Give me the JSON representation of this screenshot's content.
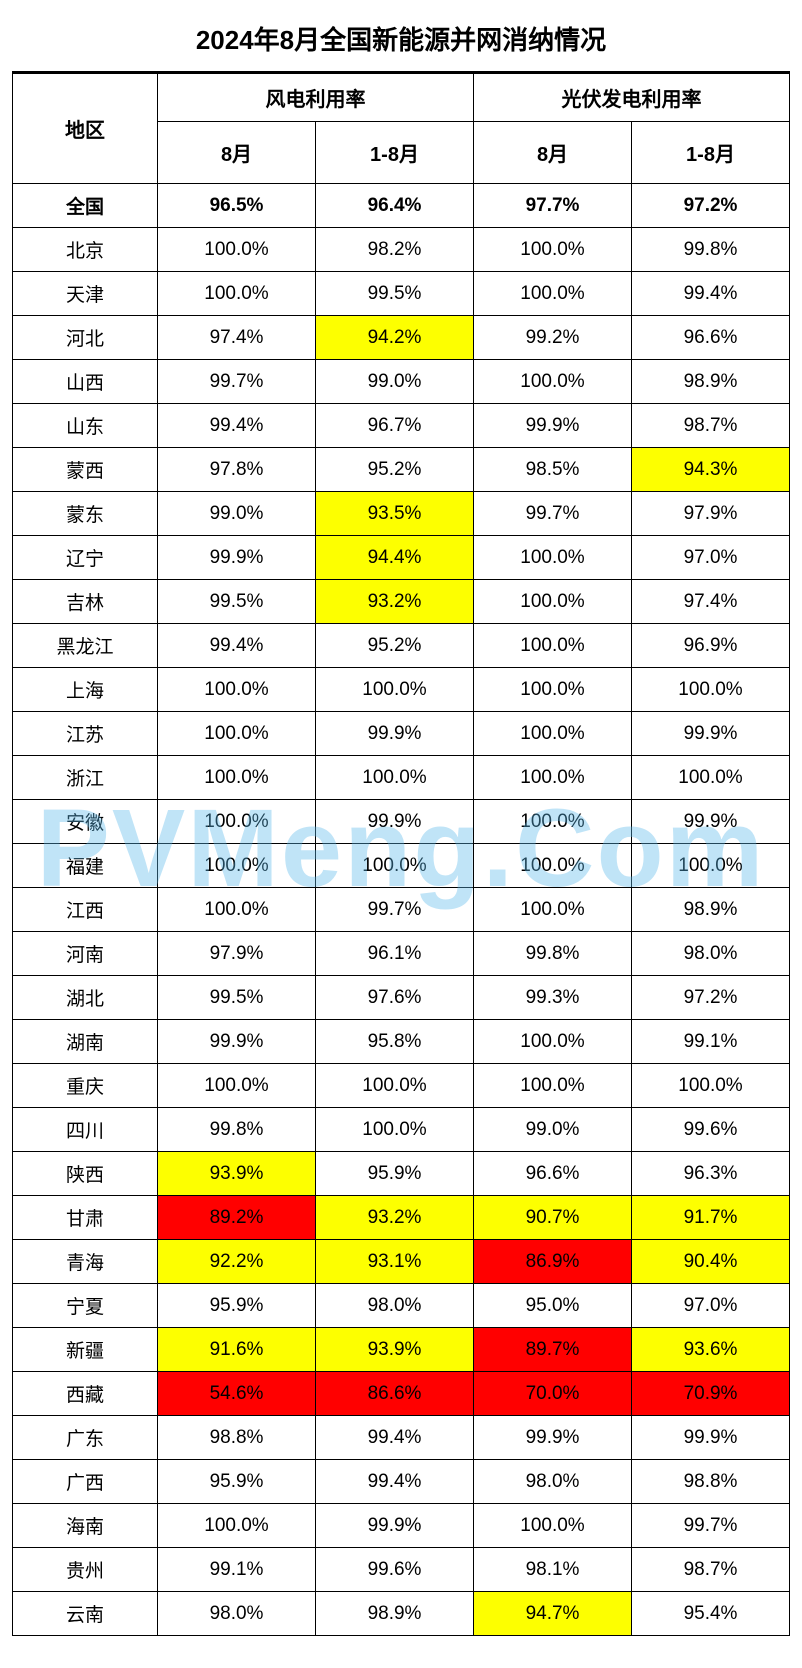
{
  "title": "2024年8月全国新能源并网消纳情况",
  "watermark": "PVMeng.Com",
  "colors": {
    "highlight_yellow": "#fdff00",
    "highlight_red": "#ff0000",
    "border": "#000000",
    "background": "#ffffff",
    "watermark": "rgba(90,185,235,0.38)"
  },
  "header": {
    "region": "地区",
    "group_wind": "风电利用率",
    "group_solar": "光伏发电利用率",
    "sub_aug": "8月",
    "sub_jan_aug": "1-8月"
  },
  "rows": [
    {
      "region": "全国",
      "bold": true,
      "wind_aug": "96.5%",
      "wind_ytd": "96.4%",
      "solar_aug": "97.7%",
      "solar_ytd": "97.2%",
      "hl": {}
    },
    {
      "region": "北京",
      "wind_aug": "100.0%",
      "wind_ytd": "98.2%",
      "solar_aug": "100.0%",
      "solar_ytd": "99.8%",
      "hl": {}
    },
    {
      "region": "天津",
      "wind_aug": "100.0%",
      "wind_ytd": "99.5%",
      "solar_aug": "100.0%",
      "solar_ytd": "99.4%",
      "hl": {}
    },
    {
      "region": "河北",
      "wind_aug": "97.4%",
      "wind_ytd": "94.2%",
      "solar_aug": "99.2%",
      "solar_ytd": "96.6%",
      "hl": {
        "wind_ytd": "yellow"
      }
    },
    {
      "region": "山西",
      "wind_aug": "99.7%",
      "wind_ytd": "99.0%",
      "solar_aug": "100.0%",
      "solar_ytd": "98.9%",
      "hl": {}
    },
    {
      "region": "山东",
      "wind_aug": "99.4%",
      "wind_ytd": "96.7%",
      "solar_aug": "99.9%",
      "solar_ytd": "98.7%",
      "hl": {}
    },
    {
      "region": "蒙西",
      "wind_aug": "97.8%",
      "wind_ytd": "95.2%",
      "solar_aug": "98.5%",
      "solar_ytd": "94.3%",
      "hl": {
        "solar_ytd": "yellow"
      }
    },
    {
      "region": "蒙东",
      "wind_aug": "99.0%",
      "wind_ytd": "93.5%",
      "solar_aug": "99.7%",
      "solar_ytd": "97.9%",
      "hl": {
        "wind_ytd": "yellow"
      }
    },
    {
      "region": "辽宁",
      "wind_aug": "99.9%",
      "wind_ytd": "94.4%",
      "solar_aug": "100.0%",
      "solar_ytd": "97.0%",
      "hl": {
        "wind_ytd": "yellow"
      }
    },
    {
      "region": "吉林",
      "wind_aug": "99.5%",
      "wind_ytd": "93.2%",
      "solar_aug": "100.0%",
      "solar_ytd": "97.4%",
      "hl": {
        "wind_ytd": "yellow"
      }
    },
    {
      "region": "黑龙江",
      "wind_aug": "99.4%",
      "wind_ytd": "95.2%",
      "solar_aug": "100.0%",
      "solar_ytd": "96.9%",
      "hl": {}
    },
    {
      "region": "上海",
      "wind_aug": "100.0%",
      "wind_ytd": "100.0%",
      "solar_aug": "100.0%",
      "solar_ytd": "100.0%",
      "hl": {}
    },
    {
      "region": "江苏",
      "wind_aug": "100.0%",
      "wind_ytd": "99.9%",
      "solar_aug": "100.0%",
      "solar_ytd": "99.9%",
      "hl": {}
    },
    {
      "region": "浙江",
      "wind_aug": "100.0%",
      "wind_ytd": "100.0%",
      "solar_aug": "100.0%",
      "solar_ytd": "100.0%",
      "hl": {}
    },
    {
      "region": "安徽",
      "wind_aug": "100.0%",
      "wind_ytd": "99.9%",
      "solar_aug": "100.0%",
      "solar_ytd": "99.9%",
      "hl": {}
    },
    {
      "region": "福建",
      "wind_aug": "100.0%",
      "wind_ytd": "100.0%",
      "solar_aug": "100.0%",
      "solar_ytd": "100.0%",
      "hl": {}
    },
    {
      "region": "江西",
      "wind_aug": "100.0%",
      "wind_ytd": "99.7%",
      "solar_aug": "100.0%",
      "solar_ytd": "98.9%",
      "hl": {}
    },
    {
      "region": "河南",
      "wind_aug": "97.9%",
      "wind_ytd": "96.1%",
      "solar_aug": "99.8%",
      "solar_ytd": "98.0%",
      "hl": {}
    },
    {
      "region": "湖北",
      "wind_aug": "99.5%",
      "wind_ytd": "97.6%",
      "solar_aug": "99.3%",
      "solar_ytd": "97.2%",
      "hl": {}
    },
    {
      "region": "湖南",
      "wind_aug": "99.9%",
      "wind_ytd": "95.8%",
      "solar_aug": "100.0%",
      "solar_ytd": "99.1%",
      "hl": {}
    },
    {
      "region": "重庆",
      "wind_aug": "100.0%",
      "wind_ytd": "100.0%",
      "solar_aug": "100.0%",
      "solar_ytd": "100.0%",
      "hl": {}
    },
    {
      "region": "四川",
      "wind_aug": "99.8%",
      "wind_ytd": "100.0%",
      "solar_aug": "99.0%",
      "solar_ytd": "99.6%",
      "hl": {}
    },
    {
      "region": "陕西",
      "wind_aug": "93.9%",
      "wind_ytd": "95.9%",
      "solar_aug": "96.6%",
      "solar_ytd": "96.3%",
      "hl": {
        "wind_aug": "yellow"
      }
    },
    {
      "region": "甘肃",
      "wind_aug": "89.2%",
      "wind_ytd": "93.2%",
      "solar_aug": "90.7%",
      "solar_ytd": "91.7%",
      "hl": {
        "wind_aug": "red",
        "wind_ytd": "yellow",
        "solar_aug": "yellow",
        "solar_ytd": "yellow"
      }
    },
    {
      "region": "青海",
      "wind_aug": "92.2%",
      "wind_ytd": "93.1%",
      "solar_aug": "86.9%",
      "solar_ytd": "90.4%",
      "hl": {
        "wind_aug": "yellow",
        "wind_ytd": "yellow",
        "solar_aug": "red",
        "solar_ytd": "yellow"
      }
    },
    {
      "region": "宁夏",
      "wind_aug": "95.9%",
      "wind_ytd": "98.0%",
      "solar_aug": "95.0%",
      "solar_ytd": "97.0%",
      "hl": {}
    },
    {
      "region": "新疆",
      "wind_aug": "91.6%",
      "wind_ytd": "93.9%",
      "solar_aug": "89.7%",
      "solar_ytd": "93.6%",
      "hl": {
        "wind_aug": "yellow",
        "wind_ytd": "yellow",
        "solar_aug": "red",
        "solar_ytd": "yellow"
      }
    },
    {
      "region": "西藏",
      "wind_aug": "54.6%",
      "wind_ytd": "86.6%",
      "solar_aug": "70.0%",
      "solar_ytd": "70.9%",
      "hl": {
        "wind_aug": "red",
        "wind_ytd": "red",
        "solar_aug": "red",
        "solar_ytd": "red"
      }
    },
    {
      "region": "广东",
      "wind_aug": "98.8%",
      "wind_ytd": "99.4%",
      "solar_aug": "99.9%",
      "solar_ytd": "99.9%",
      "hl": {}
    },
    {
      "region": "广西",
      "wind_aug": "95.9%",
      "wind_ytd": "99.4%",
      "solar_aug": "98.0%",
      "solar_ytd": "98.8%",
      "hl": {}
    },
    {
      "region": "海南",
      "wind_aug": "100.0%",
      "wind_ytd": "99.9%",
      "solar_aug": "100.0%",
      "solar_ytd": "99.7%",
      "hl": {}
    },
    {
      "region": "贵州",
      "wind_aug": "99.1%",
      "wind_ytd": "99.6%",
      "solar_aug": "98.1%",
      "solar_ytd": "98.7%",
      "hl": {}
    },
    {
      "region": "云南",
      "wind_aug": "98.0%",
      "wind_ytd": "98.9%",
      "solar_aug": "94.7%",
      "solar_ytd": "95.4%",
      "hl": {
        "solar_aug": "yellow"
      }
    }
  ]
}
